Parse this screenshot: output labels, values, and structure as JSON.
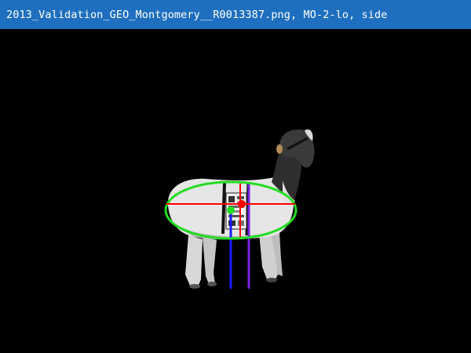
{
  "window": {
    "title": "2013_Validation_GEO_Montgomery__R0013387.png, MO-2-lo, side"
  },
  "overlay": {
    "ellipse_color": "#22dd22",
    "horizontal_axis_color": "#ff0000",
    "vertical_axis_color": "#ff0000",
    "center_marker_color": "#ff0000",
    "centroid_marker_color": "#22dd22",
    "front_leg_line_color": "#7a22e0",
    "rear_leg_line_color": "#1a1aff"
  },
  "subject": {
    "description_icon": "goat-silhouette-icon"
  }
}
